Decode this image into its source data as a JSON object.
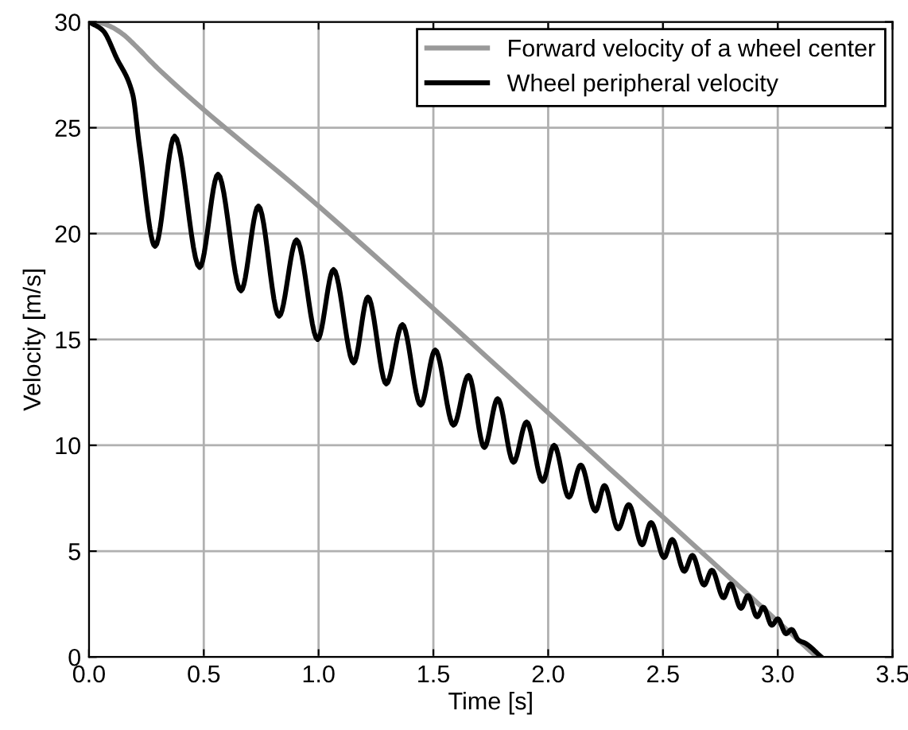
{
  "chart_data": {
    "type": "line",
    "xlabel": "Time [s]",
    "ylabel": "Velocity [m/s]",
    "xlim": [
      0,
      3.5
    ],
    "ylim": [
      0,
      30
    ],
    "xticks": [
      {
        "value": 0,
        "label": "0.0"
      },
      {
        "value": 0.5,
        "label": "0.5"
      },
      {
        "value": 1,
        "label": "1.0"
      },
      {
        "value": 1.5,
        "label": "1.5"
      },
      {
        "value": 2,
        "label": "2.0"
      },
      {
        "value": 2.5,
        "label": "2.5"
      },
      {
        "value": 3,
        "label": "3.0"
      },
      {
        "value": 3.5,
        "label": "3.5"
      }
    ],
    "yticks": [
      0,
      5,
      10,
      15,
      20,
      25,
      30
    ],
    "grid": true,
    "legend": "top right",
    "marker": "none",
    "line_style": "solid",
    "series": [
      {
        "name": "Forward velocity of a wheel center",
        "color": "#999999",
        "x": [
          0,
          0.05,
          0.1,
          0.15,
          0.2,
          0.3,
          1.0,
          2.24,
          3.17
        ],
        "values": [
          30,
          29.95,
          29.75,
          29.4,
          28.9,
          27.8,
          21.3,
          9.17,
          0
        ]
      },
      {
        "name": "Wheel peripheral velocity",
        "color": "#000000",
        "x": [
          0,
          0.06,
          0.12,
          0.19,
          0.22,
          0.288,
          0.373,
          0.482,
          0.562,
          0.662,
          0.738,
          0.828,
          0.904,
          0.996,
          1.065,
          1.153,
          1.215,
          1.295,
          1.365,
          1.445,
          1.508,
          1.588,
          1.653,
          1.722,
          1.78,
          1.849,
          1.906,
          1.976,
          2.026,
          2.09,
          2.142,
          2.206,
          2.245,
          2.305,
          2.351,
          2.409,
          2.448,
          2.505,
          2.54,
          2.593,
          2.628,
          2.679,
          2.713,
          2.764,
          2.794,
          2.84,
          2.87,
          2.91,
          2.937,
          2.974,
          3.0,
          3.036,
          3.06,
          3.09,
          3.12,
          3.19
        ],
        "values": [
          30,
          29.6,
          28.3,
          26.6,
          24.1,
          19.4,
          24.6,
          18.4,
          22.8,
          17.3,
          21.3,
          16.1,
          19.7,
          15.0,
          18.3,
          13.9,
          17.0,
          12.9,
          15.7,
          11.9,
          14.5,
          10.95,
          13.3,
          9.9,
          12.2,
          9.2,
          11.1,
          8.3,
          10.0,
          7.55,
          9.07,
          6.9,
          8.1,
          6.05,
          7.2,
          5.3,
          6.35,
          4.7,
          5.55,
          4.05,
          4.8,
          3.4,
          4.1,
          2.8,
          3.45,
          2.3,
          2.9,
          1.9,
          2.35,
          1.5,
          1.8,
          1.1,
          1.3,
          0.8,
          0.65,
          0
        ]
      }
    ]
  }
}
